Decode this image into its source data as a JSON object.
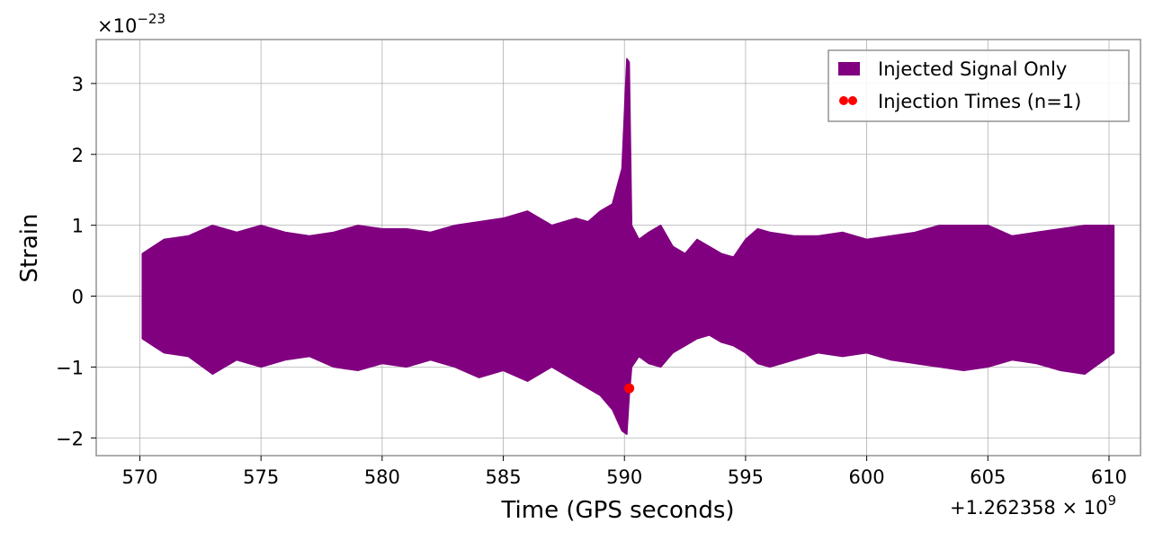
{
  "chart_data": {
    "type": "line",
    "title": "",
    "xlabel": "Time (GPS seconds)",
    "ylabel": "Strain",
    "x_offset_label": "+1.262358 × 10",
    "x_offset_exponent": "9",
    "y_scale_label": "×10",
    "y_scale_exponent": "−23",
    "xlim": [
      568.2,
      611.3
    ],
    "ylim": [
      -2.25,
      3.62
    ],
    "x_ticks": [
      570,
      575,
      580,
      585,
      590,
      595,
      600,
      605,
      610
    ],
    "x_tick_labels": [
      "570",
      "575",
      "580",
      "585",
      "590",
      "595",
      "600",
      "605",
      "610"
    ],
    "y_ticks": [
      -2,
      -1,
      0,
      1,
      2,
      3
    ],
    "y_tick_labels": [
      "−2",
      "−1",
      "0",
      "1",
      "2",
      "3"
    ],
    "grid": true,
    "legend_position": "top-right",
    "series": [
      {
        "name": "Injected Signal Only",
        "color": "#800080",
        "kind": "filled-envelope",
        "x": [
          570.1,
          571,
          572,
          573,
          574,
          575,
          576,
          577,
          578,
          579,
          580,
          581,
          582,
          583,
          584,
          585,
          586,
          587,
          588,
          588.5,
          589,
          589.5,
          589.9,
          590.1,
          590.2,
          590.3,
          590.6,
          591,
          591.5,
          592,
          592.5,
          593,
          593.5,
          594,
          594.5,
          595,
          595.5,
          596,
          597,
          598,
          599,
          600,
          601,
          602,
          603,
          604,
          605,
          606,
          607,
          608,
          609,
          610.2
        ],
        "upper": [
          0.6,
          0.8,
          0.85,
          1.0,
          0.9,
          1.0,
          0.9,
          0.85,
          0.9,
          1.0,
          0.95,
          0.95,
          0.9,
          1.0,
          1.05,
          1.1,
          1.2,
          1.0,
          1.1,
          1.05,
          1.2,
          1.3,
          1.8,
          3.35,
          3.3,
          1.0,
          0.8,
          0.9,
          1.0,
          0.7,
          0.6,
          0.8,
          0.7,
          0.6,
          0.55,
          0.8,
          0.95,
          0.9,
          0.85,
          0.85,
          0.9,
          0.8,
          0.85,
          0.9,
          1.0,
          1.0,
          1.0,
          0.85,
          0.9,
          0.95,
          1.0,
          1.0
        ],
        "lower": [
          -0.6,
          -0.8,
          -0.85,
          -1.1,
          -0.9,
          -1.0,
          -0.9,
          -0.85,
          -1.0,
          -1.05,
          -0.95,
          -1.0,
          -0.9,
          -1.0,
          -1.15,
          -1.05,
          -1.2,
          -1.0,
          -1.2,
          -1.3,
          -1.4,
          -1.6,
          -1.9,
          -1.95,
          -1.4,
          -1.0,
          -0.85,
          -0.95,
          -1.0,
          -0.8,
          -0.7,
          -0.6,
          -0.55,
          -0.65,
          -0.7,
          -0.8,
          -0.95,
          -1.0,
          -0.9,
          -0.8,
          -0.85,
          -0.8,
          -0.9,
          -0.95,
          -1.0,
          -1.05,
          -1.0,
          -0.9,
          -0.95,
          -1.05,
          -1.1,
          -0.8
        ]
      },
      {
        "name": "Injection Times (n=1)",
        "color": "#ff0000",
        "kind": "scatter",
        "x": [
          590.2
        ],
        "y": [
          -1.3
        ]
      }
    ]
  }
}
